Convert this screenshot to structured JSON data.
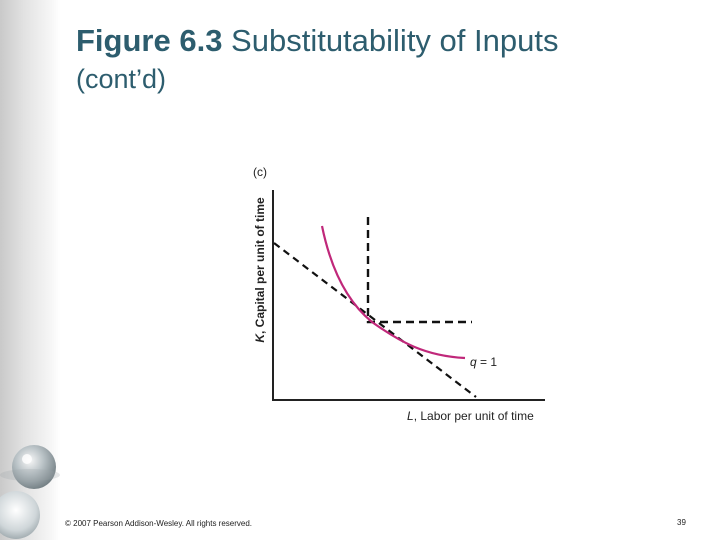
{
  "slide": {
    "title_bold": "Figure 6.3",
    "title_rest": " Substitutability of Inputs",
    "subtitle": "(cont’d)",
    "footer": "© 2007 Pearson Addison-Wesley. All rights reserved.",
    "page_number": "39"
  },
  "figure": {
    "panel": "(c)",
    "y_axis_var": "K",
    "y_axis_text": ", Capital per unit of time",
    "x_axis_var": "L",
    "x_axis_text": ", Labor per unit of time",
    "curve_var": "q",
    "curve_text": " = 1",
    "colors": {
      "isoquant": "#c0287a",
      "axes": "#222222",
      "title": "#2d5d6e"
    }
  }
}
